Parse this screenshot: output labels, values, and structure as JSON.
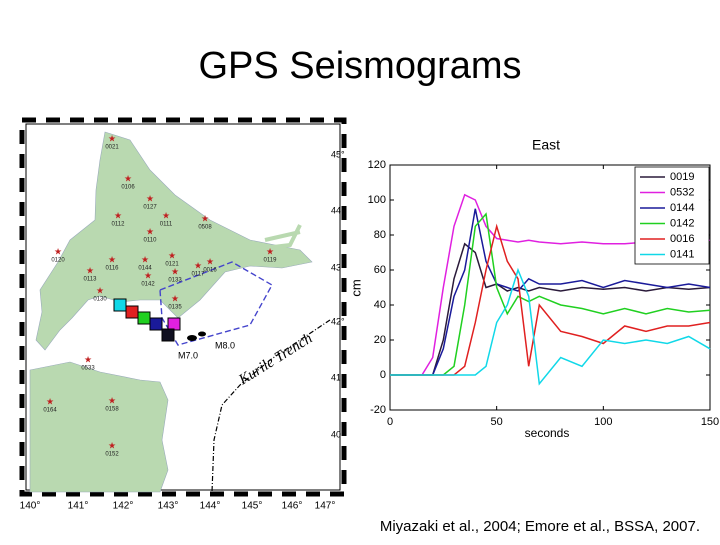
{
  "header": {
    "title": "GPS Seismograms"
  },
  "citation": "Miyazaki et al., 2004; Emore et al., BSSA, 2007.",
  "map": {
    "lon_ticks": [
      "140°",
      "141°",
      "142°",
      "143°",
      "144°",
      "145°",
      "146°",
      "147°"
    ],
    "lat_ticks": [
      "45°",
      "44°",
      "43°",
      "42°",
      "41°",
      "40°"
    ],
    "stations": [
      "0021",
      "0106",
      "0127",
      "0112",
      "0111",
      "0110",
      "0508",
      "0120",
      "0121",
      "0113",
      "0116",
      "0119",
      "0133",
      "0117",
      "0135",
      "0130",
      "0144",
      "0142",
      "0016",
      "0533",
      "0164",
      "0158",
      "0152"
    ],
    "trench": "Kurile Trench",
    "events": [
      "M8.0",
      "M7.0"
    ]
  },
  "chart_data": {
    "type": "line",
    "title": "East",
    "x_label": "seconds",
    "y_label": "cm",
    "x": [
      0,
      10,
      15,
      20,
      25,
      30,
      35,
      40,
      45,
      50,
      55,
      60,
      65,
      70,
      80,
      90,
      100,
      110,
      120,
      130,
      140,
      150
    ],
    "xlim": [
      0,
      150
    ],
    "xticks": [
      0,
      50,
      100,
      150
    ],
    "ylim": [
      -20,
      120
    ],
    "yticks": [
      -20,
      0,
      20,
      40,
      60,
      80,
      100,
      120
    ],
    "legend": "upper right",
    "series": [
      {
        "name": "0019",
        "color": "#2a1a3a",
        "values": [
          0,
          0,
          0,
          0,
          20,
          55,
          75,
          70,
          50,
          52,
          48,
          50,
          48,
          50,
          48,
          50,
          49,
          50,
          48,
          50,
          49,
          50
        ]
      },
      {
        "name": "0532",
        "color": "#e020e0",
        "values": [
          0,
          0,
          0,
          10,
          50,
          85,
          103,
          100,
          85,
          78,
          77,
          76,
          77,
          76,
          75,
          76,
          75,
          75,
          76,
          75,
          76,
          77
        ]
      },
      {
        "name": "0144",
        "color": "#1a1a9a",
        "values": [
          0,
          0,
          0,
          0,
          15,
          45,
          60,
          95,
          65,
          52,
          50,
          48,
          55,
          52,
          52,
          54,
          50,
          54,
          52,
          50,
          52,
          50
        ]
      },
      {
        "name": "0142",
        "color": "#20d020",
        "values": [
          0,
          0,
          0,
          0,
          0,
          5,
          40,
          85,
          92,
          50,
          35,
          45,
          42,
          45,
          40,
          38,
          35,
          38,
          35,
          38,
          36,
          37
        ]
      },
      {
        "name": "0016",
        "color": "#e02020",
        "values": [
          0,
          0,
          0,
          0,
          0,
          0,
          5,
          30,
          60,
          85,
          65,
          55,
          5,
          40,
          25,
          22,
          18,
          28,
          25,
          28,
          28,
          30
        ]
      },
      {
        "name": "0141",
        "color": "#10d8e8",
        "values": [
          0,
          0,
          0,
          0,
          0,
          0,
          0,
          0,
          5,
          30,
          40,
          60,
          45,
          -5,
          10,
          5,
          20,
          18,
          20,
          18,
          22,
          15
        ]
      }
    ]
  }
}
